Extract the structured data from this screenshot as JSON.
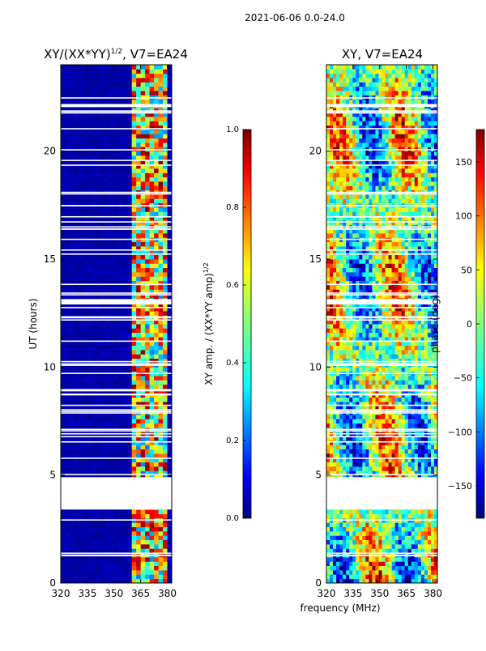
{
  "page_title": "2021-06-06 0.0-24.0",
  "chart_data": [
    {
      "type": "heatmap",
      "title": "XY/(XX*YY)",
      "title_superscript": "1/2",
      "title_suffix": ", V7=EA24",
      "xlabel": "",
      "ylabel": "UT (hours)",
      "xlim": [
        320,
        382.5
      ],
      "ylim": [
        0,
        24
      ],
      "xticks": [
        320,
        335,
        350,
        365,
        380
      ],
      "yticks": [
        0,
        5,
        10,
        15,
        20
      ],
      "colorbar": {
        "label": "XY amp. / (XX*YY amp)",
        "label_superscript": "1/2",
        "range": [
          0.0,
          1.0
        ],
        "ticks": [
          "0.0",
          "0.2",
          "0.4",
          "0.6",
          "0.8",
          "1.0"
        ],
        "colormap": "jet"
      },
      "data_gaps_hours": [
        [
          3.4,
          4.9
        ],
        [
          12.9,
          13.15
        ]
      ],
      "active_band_mhz": [
        360,
        380
      ]
    },
    {
      "type": "heatmap",
      "title": "XY, V7=EA24",
      "xlabel": "frequency (MHz)",
      "ylabel": "",
      "xlim": [
        320,
        382.5
      ],
      "ylim": [
        0,
        24
      ],
      "xticks": [
        320,
        335,
        350,
        365,
        380
      ],
      "yticks": [
        0,
        5,
        10,
        15,
        20
      ],
      "colorbar": {
        "label": "phase (deg)",
        "range": [
          -180,
          180
        ],
        "ticks": [
          "150",
          "100",
          "50",
          "0",
          "−50",
          "−100",
          "−150"
        ],
        "colormap": "jet"
      },
      "data_gaps_hours": [
        [
          3.4,
          4.9
        ],
        [
          12.9,
          13.15
        ]
      ]
    }
  ],
  "colors": {
    "jet": [
      "#00007f",
      "#0000ff",
      "#007fff",
      "#00ffff",
      "#7fff7f",
      "#ffff00",
      "#ff7f00",
      "#ff0000",
      "#7f0000"
    ]
  }
}
